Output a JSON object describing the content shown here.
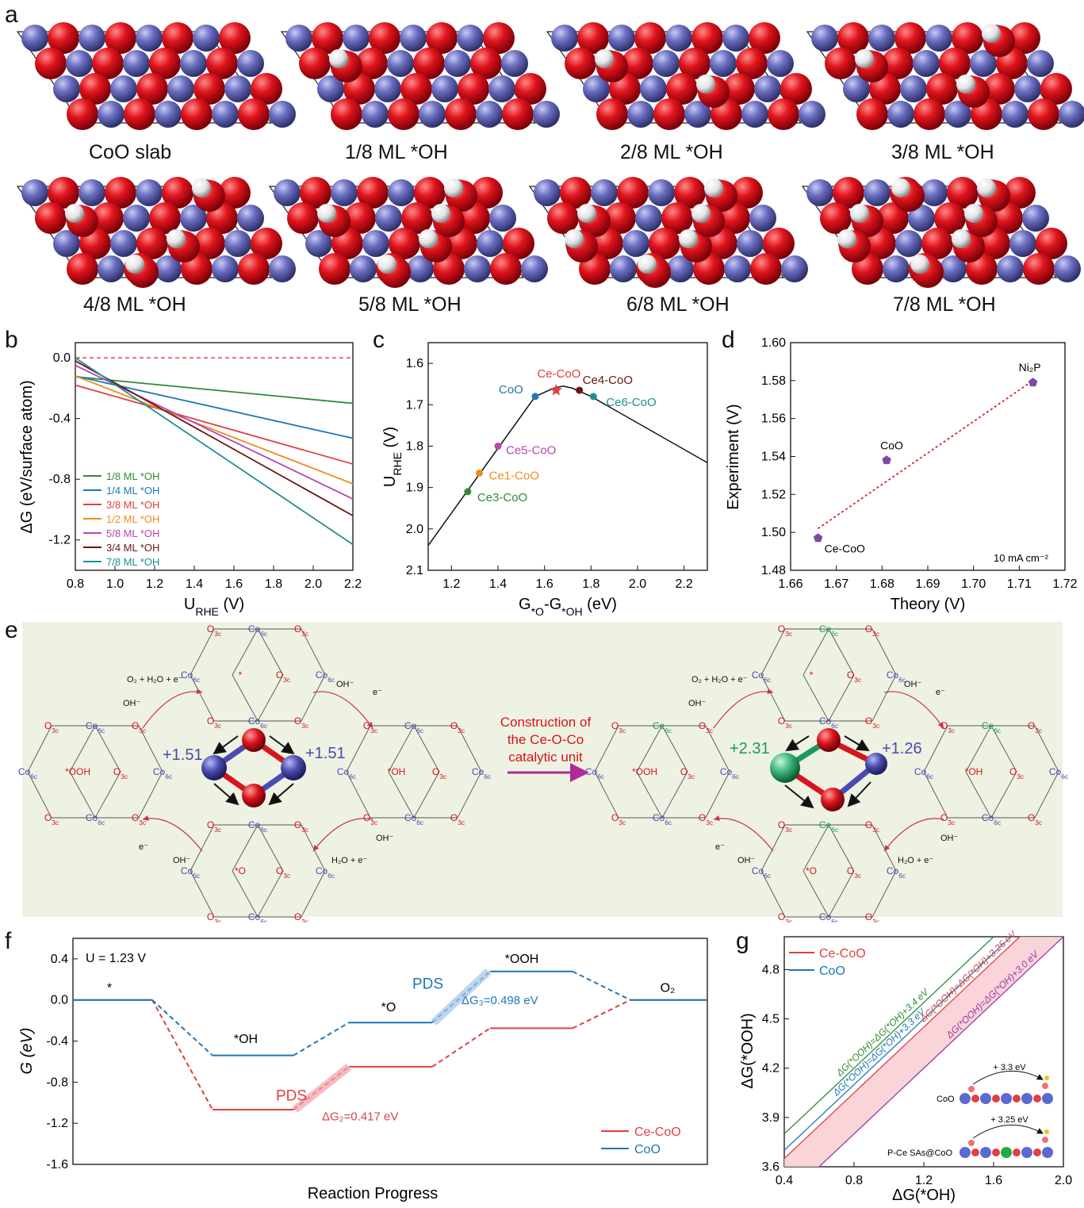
{
  "panel_labels": {
    "a": "a",
    "b": "b",
    "c": "c",
    "d": "d",
    "e": "e",
    "f": "f",
    "g": "g"
  },
  "panel_a": {
    "captions": [
      "CoO slab",
      "1/8 ML *OH",
      "2/8 ML *OH",
      "3/8 ML *OH",
      "4/8 ML *OH",
      "5/8 ML *OH",
      "6/8 ML *OH",
      "7/8 ML *OH"
    ],
    "atom_colors": {
      "O": "#d8141c",
      "Co": "#6f72c2",
      "H": "#f2f2f2"
    }
  },
  "panel_e": {
    "center_text": [
      "Construction of",
      "the Ce-O-Co",
      "catalytic unit"
    ],
    "left_charges": [
      "+1.51",
      "+1.51"
    ],
    "right_charges": [
      "+2.31",
      "+1.26"
    ],
    "intermediates": [
      "*OOH",
      "*OH",
      "*O",
      "*"
    ],
    "sites": {
      "o3c": "O",
      "o3c_sub": "3c",
      "co6c": "Co",
      "co6c_sub": "6c",
      "ce6c": "Ce",
      "ce6c_sub": "6c"
    },
    "step_labels": {
      "o2_release": "O₂ + H₂O + e⁻",
      "oh_in": "OH⁻",
      "e_out": "e⁻",
      "h2o_e": "H₂O + e⁻"
    },
    "colors": {
      "background": "#eef2e2",
      "o": "#d8141c",
      "co": "#4a4ab0",
      "ce": "#1a9a5a",
      "arrow": "#c8305a",
      "blue_arrow": "#2a5a9a"
    }
  },
  "chart_data": [
    {
      "panel": "b",
      "type": "line",
      "xlabel": "U_RHE (V)",
      "ylabel": "ΔG (eV/surface atom)",
      "xlim": [
        0.8,
        2.2
      ],
      "ylim": [
        -1.4,
        0.1
      ],
      "xticks": [
        "0.8",
        "1.0",
        "1.2",
        "1.4",
        "1.6",
        "1.8",
        "2.0",
        "2.2"
      ],
      "yticks": [
        "0.0",
        "-0.4",
        "-0.8",
        "-1.2"
      ],
      "reference_line": {
        "y": 0.0,
        "style": "dashed",
        "color": "#d62728"
      },
      "legend_position": "bottom-left",
      "series": [
        {
          "name": "1/8 ML *OH",
          "color": "#2e8b34",
          "x": [
            0.8,
            2.2
          ],
          "y": [
            -0.125,
            -0.3
          ]
        },
        {
          "name": "1/4 ML *OH",
          "color": "#1f77b4",
          "x": [
            0.8,
            2.2
          ],
          "y": [
            -0.12,
            -0.53
          ]
        },
        {
          "name": "3/8 ML *OH",
          "color": "#e04040",
          "x": [
            0.8,
            2.2
          ],
          "y": [
            -0.18,
            -0.7
          ]
        },
        {
          "name": "1/2 ML *OH",
          "color": "#f08c1c",
          "x": [
            0.8,
            2.2
          ],
          "y": [
            -0.12,
            -0.83
          ]
        },
        {
          "name": "5/8 ML *OH",
          "color": "#b546b5",
          "x": [
            0.8,
            2.2
          ],
          "y": [
            -0.05,
            -0.93
          ]
        },
        {
          "name": "3/4 ML *OH",
          "color": "#6b1414",
          "x": [
            0.8,
            2.2
          ],
          "y": [
            -0.02,
            -1.04
          ]
        },
        {
          "name": "7/8 ML *OH",
          "color": "#1e8f8f",
          "x": [
            0.8,
            2.2
          ],
          "y": [
            0.0,
            -1.23
          ]
        }
      ]
    },
    {
      "panel": "c",
      "type": "scatter",
      "xlabel": "G*O-G*OH (eV)",
      "ylabel": "U_RHE (V)",
      "xlim": [
        1.1,
        2.3
      ],
      "ylim": [
        2.1,
        1.55
      ],
      "y_inverted": true,
      "xticks": [
        "1.2",
        "1.4",
        "1.6",
        "1.8",
        "2.0",
        "2.2"
      ],
      "yticks": [
        "1.6",
        "1.7",
        "1.8",
        "1.9",
        "2.0",
        "2.1"
      ],
      "volcano": {
        "x": [
          1.1,
          1.56,
          1.64,
          1.68,
          1.72,
          1.8,
          2.3
        ],
        "y": [
          2.04,
          1.68,
          1.66,
          1.655,
          1.66,
          1.68,
          1.84
        ]
      },
      "points": [
        {
          "label": "CoO",
          "x": 1.56,
          "y": 1.68,
          "color": "#1f77b4",
          "marker": "circle"
        },
        {
          "label": "Ce-CoO",
          "x": 1.65,
          "y": 1.665,
          "color": "#e04040",
          "marker": "star"
        },
        {
          "label": "Ce4-CoO",
          "x": 1.75,
          "y": 1.665,
          "color": "#6b1414",
          "marker": "circle"
        },
        {
          "label": "Ce6-CoO",
          "x": 1.81,
          "y": 1.68,
          "color": "#1e8f8f",
          "marker": "circle"
        },
        {
          "label": "Ce5-CoO",
          "x": 1.4,
          "y": 1.8,
          "color": "#b546b5",
          "marker": "circle"
        },
        {
          "label": "Ce1-CoO",
          "x": 1.32,
          "y": 1.865,
          "color": "#f08c1c",
          "marker": "circle"
        },
        {
          "label": "Ce3-CoO",
          "x": 1.27,
          "y": 1.91,
          "color": "#2e8b34",
          "marker": "circle"
        }
      ]
    },
    {
      "panel": "d",
      "type": "scatter",
      "xlabel": "Theory (V)",
      "ylabel": "Experiment (V)",
      "xlim": [
        1.66,
        1.72
      ],
      "ylim": [
        1.48,
        1.6
      ],
      "xticks": [
        "1.66",
        "1.67",
        "1.68",
        "1.69",
        "1.70",
        "1.71",
        "1.72"
      ],
      "yticks": [
        "1.48",
        "1.50",
        "1.52",
        "1.54",
        "1.56",
        "1.58",
        "1.60"
      ],
      "annotation": "10 mA cm⁻²",
      "fit_line": {
        "x": [
          1.666,
          1.713
        ],
        "y": [
          1.502,
          1.58
        ],
        "style": "dotted",
        "color": "#d62728"
      },
      "points": [
        {
          "label": "Ce-CoO",
          "x": 1.666,
          "y": 1.497
        },
        {
          "label": "CoO",
          "x": 1.681,
          "y": 1.538
        },
        {
          "label": "Ni₂P",
          "x": 1.713,
          "y": 1.579
        }
      ],
      "marker_color": "#7d4aa8"
    },
    {
      "panel": "f",
      "type": "line",
      "xlabel": "Reaction Progress",
      "ylabel": "G (eV)",
      "ylim": [
        -1.6,
        0.6
      ],
      "yticks": [
        "0.4",
        "0.0",
        "-0.4",
        "-0.8",
        "-1.2",
        "-1.6"
      ],
      "condition": "U = 1.23 V",
      "legend_position": "bottom-right",
      "step_labels": [
        "*",
        "*OH",
        "*O",
        "*OOH",
        "O₂"
      ],
      "series": [
        {
          "name": "Ce-CoO",
          "color": "#e04040",
          "levels": [
            0.0,
            -1.067,
            -0.65,
            -0.275,
            0.0
          ]
        },
        {
          "name": "CoO",
          "color": "#1f77b4",
          "levels": [
            0.0,
            -0.54,
            -0.22,
            0.278,
            0.0
          ]
        }
      ],
      "pds": [
        {
          "series": "Ce-CoO",
          "label": "PDS",
          "value_label": "ΔG₂=0.417 eV",
          "color": "#e04040"
        },
        {
          "series": "CoO",
          "label": "PDS",
          "value_label": "ΔG₃=0.498 eV",
          "color": "#1f77b4"
        }
      ]
    },
    {
      "panel": "g",
      "type": "line",
      "xlabel": "ΔG(*OH)",
      "ylabel": "ΔG(*OOH)",
      "xlim": [
        0.4,
        2.0
      ],
      "ylim": [
        3.6,
        5.0
      ],
      "xticks": [
        "0.4",
        "0.8",
        "1.2",
        "1.6",
        "2.0"
      ],
      "yticks": [
        "3.6",
        "3.9",
        "4.2",
        "4.5",
        "4.8"
      ],
      "legend_position": "top-left",
      "legend": [
        {
          "name": "Ce-CoO",
          "color": "#e04040"
        },
        {
          "name": "CoO",
          "color": "#1f77b4"
        }
      ],
      "series": [
        {
          "label": "ΔG(*OOH)=ΔG(*OH)+3.4 eV",
          "offset": 3.4,
          "color": "#2e8b34"
        },
        {
          "label": "ΔG(*OOH)=ΔG(*OH)+3.3 eV",
          "offset": 3.3,
          "color": "#1f77b4"
        },
        {
          "label": "ΔG(*OOH)=ΔG(*OH)+3.25 eV",
          "offset": 3.25,
          "color": "#e04040"
        },
        {
          "label": "ΔG(*OOH)=ΔG(*OH)+3.0 eV",
          "offset": 3.0,
          "color": "#9a3aa8"
        }
      ],
      "band": {
        "from": 3.0,
        "to": 3.25,
        "color": "#f7c9cf"
      },
      "inset": {
        "labels": [
          "CoO",
          "P-Ce SAs@CoO"
        ],
        "arrows": [
          "+ 3.3 eV",
          "+ 3.25 eV"
        ]
      }
    }
  ]
}
